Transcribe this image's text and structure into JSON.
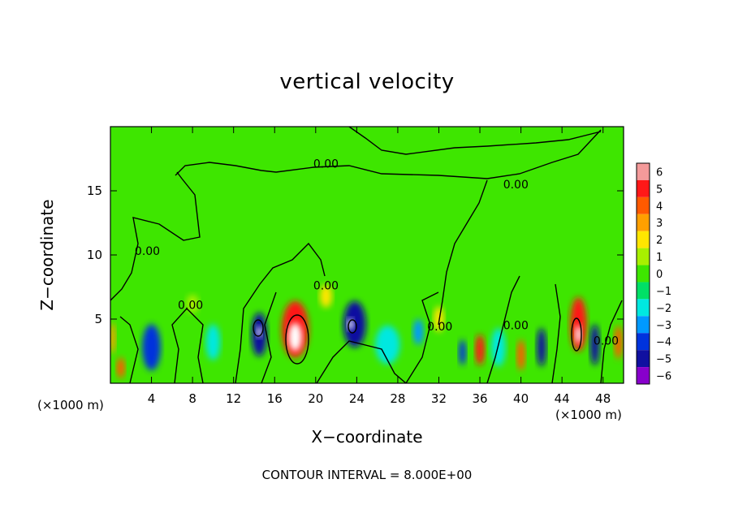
{
  "chart_data": {
    "type": "heatmap",
    "title": "vertical velocity",
    "xlabel": "X−coordinate",
    "ylabel": "Z−coordinate",
    "x_unit_left": "(×1000 m)",
    "x_unit_right": "(×1000 m)",
    "footer": "CONTOUR INTERVAL = 8.000E+00",
    "xlim": [
      0,
      50
    ],
    "ylim": [
      0,
      20
    ],
    "xticks": [
      4,
      8,
      12,
      16,
      20,
      24,
      28,
      32,
      36,
      40,
      44,
      48
    ],
    "xtick_labels": [
      "4",
      "8",
      "12",
      "16",
      "20",
      "24",
      "28",
      "32",
      "36",
      "40",
      "44",
      "48"
    ],
    "yticks": [
      5,
      10,
      15
    ],
    "ytick_labels": [
      "5",
      "10",
      "15"
    ],
    "colorbar": {
      "levels": [
        6,
        5,
        4,
        3,
        2,
        1,
        0,
        -1,
        -2,
        -3,
        -4,
        -5,
        -6
      ],
      "labels": [
        "6",
        "5",
        "4",
        "3",
        "2",
        "1",
        "0",
        "−1",
        "−2",
        "−3",
        "−4",
        "−5",
        "−6"
      ],
      "colors": [
        "#f49a9a",
        "#ff1818",
        "#ff5a00",
        "#ffa000",
        "#ffe600",
        "#a8f000",
        "#3ee600",
        "#00e066",
        "#00e8e0",
        "#0099ff",
        "#0033dd",
        "#1010a0",
        "#8800cc"
      ]
    },
    "contour_labels": [
      {
        "text": "0.00",
        "x": 21,
        "z": 16.8
      },
      {
        "text": "0.00",
        "x": 39.5,
        "z": 15.2
      },
      {
        "text": "0.00",
        "x": 3.6,
        "z": 10.0
      },
      {
        "text": "0.00",
        "x": 21.0,
        "z": 7.3
      },
      {
        "text": "0.00",
        "x": 7.8,
        "z": 5.8
      },
      {
        "text": "0.00",
        "x": 32.1,
        "z": 4.1
      },
      {
        "text": "0.00",
        "x": 39.5,
        "z": 4.2
      },
      {
        "text": "0.00",
        "x": 48.3,
        "z": 3.0
      }
    ],
    "cells": [
      {
        "x": 18.0,
        "z": 4.2,
        "w": 2.6,
        "h": 4.4,
        "v": 5
      },
      {
        "x": 18.0,
        "z": 3.6,
        "w": 1.3,
        "h": 2.2,
        "v": 6
      },
      {
        "x": 45.6,
        "z": 4.6,
        "w": 1.6,
        "h": 4.2,
        "v": 5
      },
      {
        "x": 45.6,
        "z": 3.8,
        "w": 0.6,
        "h": 1.4,
        "v": 6
      },
      {
        "x": 36.0,
        "z": 2.6,
        "w": 0.9,
        "h": 2.4,
        "v": 5
      },
      {
        "x": 40.0,
        "z": 2.2,
        "w": 0.8,
        "h": 2.4,
        "v": 4
      },
      {
        "x": 49.5,
        "z": 3.2,
        "w": 0.8,
        "h": 2.6,
        "v": 4
      },
      {
        "x": 1.0,
        "z": 1.2,
        "w": 0.8,
        "h": 1.6,
        "v": 4
      },
      {
        "x": 0.2,
        "z": 3.5,
        "w": 0.6,
        "h": 2.4,
        "v": 3
      },
      {
        "x": 4.0,
        "z": 2.8,
        "w": 1.8,
        "h": 3.6,
        "v": -4
      },
      {
        "x": 14.5,
        "z": 3.8,
        "w": 1.5,
        "h": 3.4,
        "v": -5
      },
      {
        "x": 14.5,
        "z": 4.0,
        "w": 0.5,
        "h": 0.9,
        "v": -6
      },
      {
        "x": 23.8,
        "z": 4.6,
        "w": 2.2,
        "h": 3.6,
        "v": -5
      },
      {
        "x": 23.4,
        "z": 4.6,
        "w": 0.6,
        "h": 0.9,
        "v": -6
      },
      {
        "x": 42.0,
        "z": 2.8,
        "w": 0.9,
        "h": 3.0,
        "v": -5
      },
      {
        "x": 47.2,
        "z": 3.0,
        "w": 0.9,
        "h": 3.2,
        "v": -5
      },
      {
        "x": 34.3,
        "z": 2.4,
        "w": 0.7,
        "h": 2.0,
        "v": -4
      },
      {
        "x": 30.0,
        "z": 4.0,
        "w": 1.0,
        "h": 2.0,
        "v": -3
      },
      {
        "x": 10.0,
        "z": 3.2,
        "w": 1.4,
        "h": 2.8,
        "v": -2
      },
      {
        "x": 27.0,
        "z": 3.0,
        "w": 2.4,
        "h": 3.0,
        "v": -2
      },
      {
        "x": 37.8,
        "z": 2.8,
        "w": 1.4,
        "h": 3.0,
        "v": -2
      },
      {
        "x": 8.0,
        "z": 6.2,
        "w": 1.2,
        "h": 1.4,
        "v": 1
      },
      {
        "x": 21.0,
        "z": 6.8,
        "w": 1.2,
        "h": 1.8,
        "v": 2
      },
      {
        "x": 32.0,
        "z": 5.0,
        "w": 1.0,
        "h": 2.0,
        "v": 2
      }
    ]
  }
}
